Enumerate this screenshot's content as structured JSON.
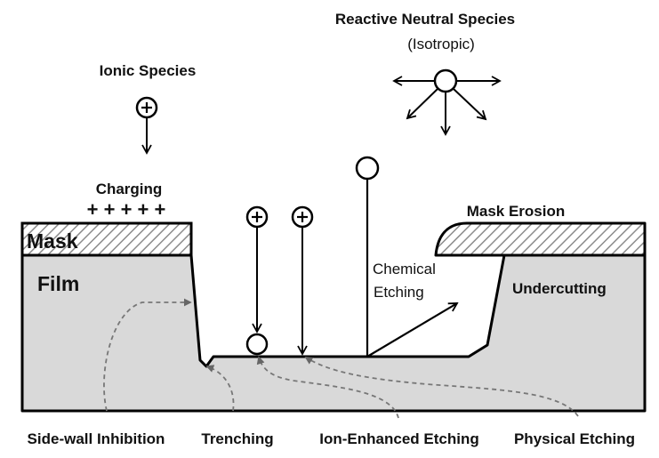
{
  "labels": {
    "reactive_title": "Reactive Neutral Species",
    "reactive_sub": "(Isotropic)",
    "ionic": "Ionic Species",
    "charging": "Charging",
    "charging_marks": "+ + + + +",
    "mask": "Mask",
    "film": "Film",
    "mask_erosion": "Mask Erosion",
    "chemical_line1": "Chemical",
    "chemical_line2": "Etching",
    "undercutting": "Undercutting",
    "sidewall": "Side-wall Inhibition",
    "trenching": "Trenching",
    "ion_enhanced": "Ion-Enhanced Etching",
    "physical": "Physical Etching"
  },
  "colors": {
    "film_fill": "#d9d9d9",
    "mask_hatch": "#8c8c8c",
    "outline": "#000000",
    "dashed_arrow": "#777777"
  }
}
